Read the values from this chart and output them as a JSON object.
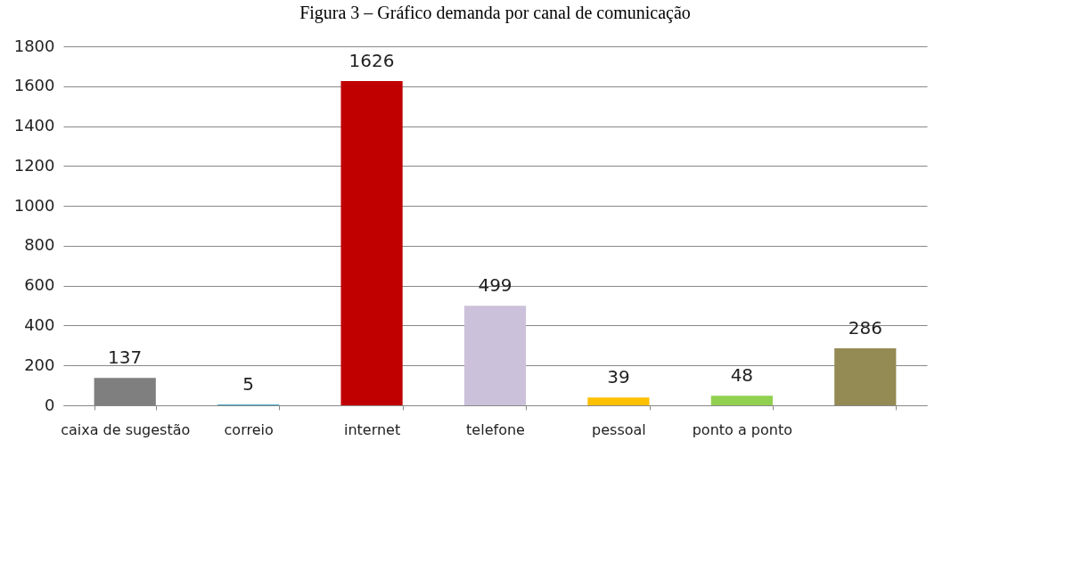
{
  "chart_data": {
    "type": "bar",
    "title": "Figura 3 – Gráfico demanda por canal de comunicação",
    "categories": [
      "caixa de sugestão",
      "correio",
      "internet",
      "telefone",
      "pessoal",
      "ponto a ponto",
      null
    ],
    "values": [
      137,
      5,
      1626,
      499,
      39,
      48,
      286
    ],
    "colors": [
      "#7f7f7f",
      "#4bacc6",
      "#c00000",
      "#ccc1da",
      "#ffc000",
      "#92d050",
      "#948a54"
    ],
    "ylim": [
      0,
      1800
    ],
    "yticks": [
      0,
      200,
      400,
      600,
      800,
      1000,
      1200,
      1400,
      1600,
      1800
    ],
    "grid": "y",
    "data_labels": true,
    "legend": false
  }
}
